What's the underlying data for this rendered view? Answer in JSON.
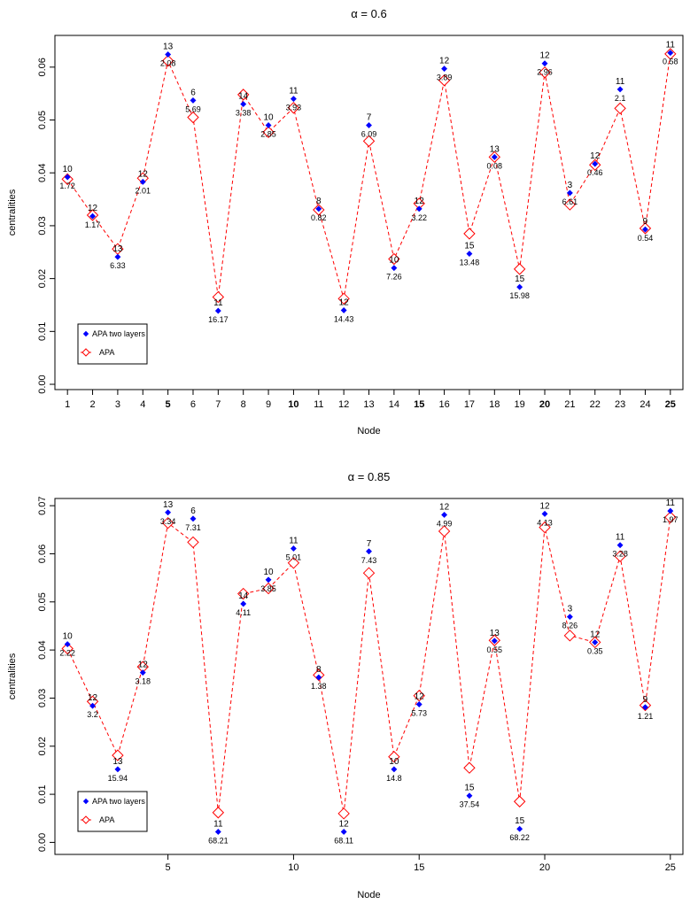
{
  "colors": {
    "two_layers": "#0000ff",
    "apa": "#ff0000",
    "axis": "#000000"
  },
  "chart_data": [
    {
      "type": "line",
      "title": "α = 0.6",
      "xlabel": "Node",
      "ylabel": "centralities",
      "xlim": [
        0.5,
        25.5
      ],
      "ylim": [
        -0.001,
        0.066
      ],
      "yticks": [
        "0.00",
        "0.01",
        "0.02",
        "0.03",
        "0.04",
        "0.05",
        "0.06"
      ],
      "ytick_values": [
        0,
        0.01,
        0.02,
        0.03,
        0.04,
        0.05,
        0.06
      ],
      "xticks": [
        1,
        2,
        3,
        4,
        5,
        6,
        7,
        8,
        9,
        10,
        11,
        12,
        13,
        14,
        15,
        16,
        17,
        18,
        19,
        20,
        21,
        22,
        23,
        24,
        25
      ],
      "xtick_labels": [
        "1",
        "2",
        "3",
        "4",
        "5",
        "6",
        "7",
        "8",
        "9",
        "10",
        "11",
        "12",
        "13",
        "14",
        "15",
        "16",
        "17",
        "18",
        "19",
        "20",
        "21",
        "22",
        "23",
        "24",
        "25"
      ],
      "x": [
        1,
        2,
        3,
        4,
        5,
        6,
        7,
        8,
        9,
        10,
        11,
        12,
        13,
        14,
        15,
        16,
        17,
        18,
        19,
        20,
        21,
        22,
        23,
        24,
        25
      ],
      "legend": {
        "position": "bottom-left",
        "entries": [
          "APA two layers",
          "APA"
        ]
      },
      "series": [
        {
          "name": "APA two layers",
          "marker": "filled-diamond",
          "values": [
            0.0392,
            0.0318,
            0.0241,
            0.0383,
            0.0624,
            0.0537,
            0.0139,
            0.053,
            0.049,
            0.054,
            0.0332,
            0.014,
            0.049,
            0.022,
            0.0332,
            0.0597,
            0.0247,
            0.043,
            0.0184,
            0.0607,
            0.0362,
            0.0417,
            0.0558,
            0.0293,
            0.0627
          ]
        },
        {
          "name": "APA",
          "marker": "open-diamond",
          "line": "dashed",
          "values": [
            0.0388,
            0.032,
            0.0256,
            0.039,
            0.0612,
            0.0505,
            0.0165,
            0.0548,
            0.0477,
            0.0523,
            0.033,
            0.0162,
            0.046,
            0.0237,
            0.0342,
            0.0575,
            0.0285,
            0.043,
            0.0218,
            0.059,
            0.034,
            0.0415,
            0.0522,
            0.0295,
            0.0625
          ]
        }
      ],
      "annotations": {
        "top": [
          "10",
          "12",
          "13",
          "12",
          "13",
          "6",
          "11",
          "14",
          "10",
          "11",
          "8",
          "12",
          "7",
          "10",
          "12",
          "12",
          "15",
          "13",
          "15",
          "12",
          "3",
          "12",
          "11",
          "9",
          "11"
        ],
        "bottom": [
          "1.72",
          "1.17",
          "6.33",
          "2.01",
          "2.08",
          "5.69",
          "16.17",
          "3.38",
          "2.85",
          "3.93",
          "0.82",
          "14.43",
          "6.09",
          "7.26",
          "3.22",
          "3.89",
          "13.48",
          "0.08",
          "15.98",
          "2.96",
          "6.61",
          "0.46",
          "2.1",
          "0.54",
          "0.58"
        ]
      }
    },
    {
      "type": "line",
      "title": "α = 0.85",
      "xlabel": "Node",
      "ylabel": "centralities",
      "xlim": [
        0.5,
        25.5
      ],
      "ylim": [
        -0.0025,
        0.0715
      ],
      "yticks": [
        "0.00",
        "0.01",
        "0.02",
        "0.03",
        "0.04",
        "0.05",
        "0.06",
        "0.07"
      ],
      "ytick_values": [
        0,
        0.01,
        0.02,
        0.03,
        0.04,
        0.05,
        0.06,
        0.07
      ],
      "xticks": [
        5,
        10,
        15,
        20,
        25
      ],
      "xtick_labels": [
        "5",
        "10",
        "15",
        "20",
        "25"
      ],
      "x": [
        1,
        2,
        3,
        4,
        5,
        6,
        7,
        8,
        9,
        10,
        11,
        12,
        13,
        14,
        15,
        16,
        17,
        18,
        19,
        20,
        21,
        22,
        23,
        24,
        25
      ],
      "legend": {
        "position": "bottom-left",
        "entries": [
          "APA two layers",
          "APA"
        ]
      },
      "series": [
        {
          "name": "APA two layers",
          "marker": "filled-diamond",
          "values": [
            0.0412,
            0.0284,
            0.0152,
            0.0353,
            0.0686,
            0.0673,
            0.0022,
            0.0496,
            0.0546,
            0.0611,
            0.0343,
            0.0022,
            0.0605,
            0.0152,
            0.0287,
            0.0681,
            0.0097,
            0.0419,
            0.0028,
            0.0683,
            0.0469,
            0.0416,
            0.0618,
            0.0281,
            0.0689
          ]
        },
        {
          "name": "APA",
          "marker": "open-diamond",
          "line": "dashed",
          "values": [
            0.0403,
            0.0293,
            0.0181,
            0.0365,
            0.0664,
            0.0624,
            0.0062,
            0.0517,
            0.0528,
            0.0581,
            0.0348,
            0.006,
            0.056,
            0.0178,
            0.0305,
            0.0647,
            0.0155,
            0.042,
            0.0085,
            0.0655,
            0.043,
            0.0416,
            0.0595,
            0.0285,
            0.0676
          ]
        }
      ],
      "annotations": {
        "top": [
          "10",
          "12",
          "13",
          "12",
          "13",
          "6",
          "11",
          "14",
          "10",
          "11",
          "8",
          "12",
          "7",
          "10",
          "12",
          "12",
          "15",
          "13",
          "15",
          "12",
          "3",
          "12",
          "11",
          "9",
          "11"
        ],
        "bottom": [
          "2.22",
          "3.2",
          "15.94",
          "3.18",
          "3.34",
          "7.31",
          "68.21",
          "4.11",
          "3.85",
          "5.01",
          "1.38",
          "68.11",
          "7.43",
          "14.8",
          "5.73",
          "4.99",
          "37.54",
          "0.55",
          "68.22",
          "4.13",
          "8.26",
          "0.35",
          "3.28",
          "1.21",
          "1.97"
        ]
      }
    }
  ]
}
